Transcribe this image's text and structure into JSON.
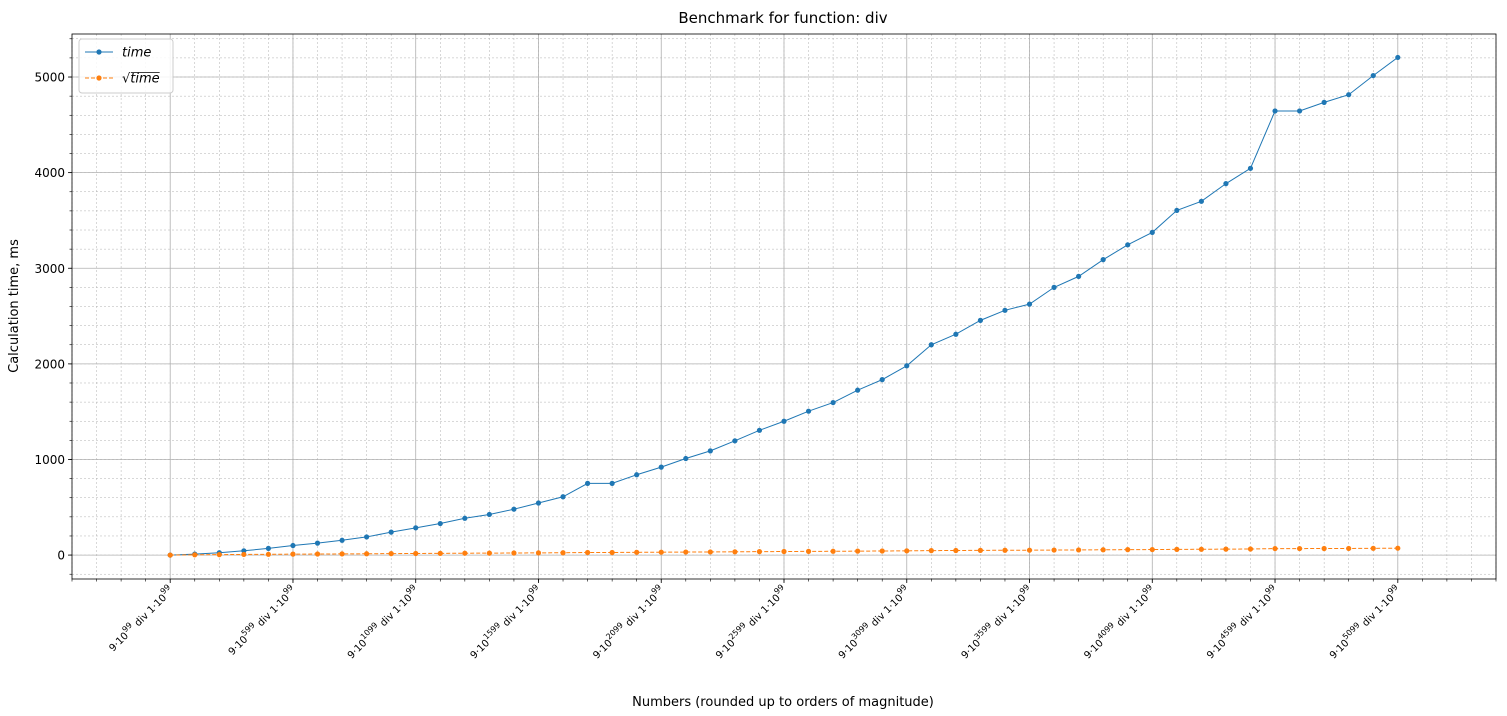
{
  "chart_data": {
    "type": "line",
    "title": "Benchmark for function: div",
    "xlabel": "Numbers (rounded up to orders of magnitude)",
    "ylabel": "Calculation time, ms",
    "xlim": [
      -4,
      54
    ],
    "ylim": [
      -250,
      5450
    ],
    "y_ticks": [
      0,
      1000,
      2000,
      3000,
      4000,
      5000
    ],
    "y_minor_step": 200,
    "x_minor_step": 1,
    "grid": true,
    "legend_position": "top-left",
    "x_ticks": [
      {
        "x": 0,
        "exp": "99",
        "rest": " div 1·10",
        "exp2": "99"
      },
      {
        "x": 5,
        "exp": "599",
        "rest": " div 1·10",
        "exp2": "99"
      },
      {
        "x": 10,
        "exp": "1099",
        "rest": " div 1·10",
        "exp2": "99"
      },
      {
        "x": 15,
        "exp": "1599",
        "rest": " div 1·10",
        "exp2": "99"
      },
      {
        "x": 20,
        "exp": "2099",
        "rest": " div 1·10",
        "exp2": "99"
      },
      {
        "x": 25,
        "exp": "2599",
        "rest": " div 1·10",
        "exp2": "99"
      },
      {
        "x": 30,
        "exp": "3099",
        "rest": " div 1·10",
        "exp2": "99"
      },
      {
        "x": 35,
        "exp": "3599",
        "rest": " div 1·10",
        "exp2": "99"
      },
      {
        "x": 40,
        "exp": "4099",
        "rest": " div 1·10",
        "exp2": "99"
      },
      {
        "x": 45,
        "exp": "4599",
        "rest": " div 1·10",
        "exp2": "99"
      },
      {
        "x": 50,
        "exp": "5099",
        "rest": " div 1·10",
        "exp2": "99"
      }
    ],
    "x_tick_prefix": "9·10",
    "series": [
      {
        "name": "time",
        "color": "#1f77b4",
        "style": "solid",
        "values": [
          0,
          10,
          25,
          45,
          70,
          100,
          125,
          155,
          190,
          240,
          285,
          330,
          385,
          425,
          480,
          545,
          610,
          750,
          750,
          840,
          920,
          1010,
          1090,
          1195,
          1305,
          1400,
          1505,
          1595,
          1725,
          1835,
          1980,
          2200,
          2310,
          2455,
          2560,
          2625,
          2800,
          2915,
          3090,
          3245,
          3375,
          3605,
          3700,
          3885,
          4045,
          4645,
          4645,
          4735,
          4815,
          5015,
          5205
        ]
      },
      {
        "name": "√time",
        "color": "#ff7f0e",
        "style": "dashed",
        "values": [
          0,
          3.2,
          5.0,
          6.7,
          8.4,
          10.0,
          11.2,
          12.4,
          13.8,
          15.5,
          16.9,
          18.2,
          19.6,
          20.6,
          21.9,
          23.3,
          24.7,
          27.4,
          27.4,
          29.0,
          30.3,
          31.8,
          33.0,
          34.6,
          36.1,
          37.4,
          38.8,
          39.9,
          41.5,
          42.8,
          44.5,
          46.9,
          48.1,
          49.5,
          50.6,
          51.2,
          52.9,
          54.0,
          55.6,
          57.0,
          58.1,
          60.0,
          60.8,
          62.3,
          63.6,
          68.2,
          68.2,
          68.8,
          69.4,
          70.8,
          72.1
        ]
      }
    ]
  }
}
